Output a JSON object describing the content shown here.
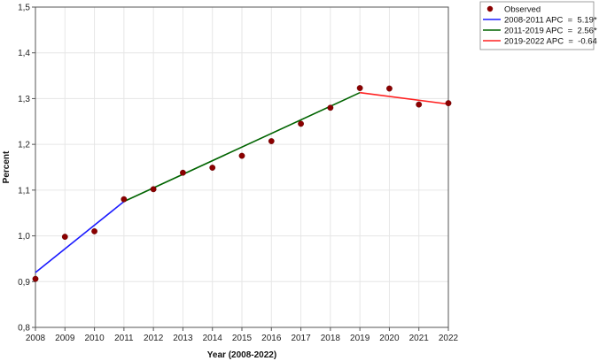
{
  "chart_data": {
    "type": "line",
    "xlabel": "Year (2008-2022)",
    "ylabel": "Percent",
    "xlim": [
      2008,
      2022
    ],
    "ylim": [
      0.8,
      1.5
    ],
    "x_ticks": [
      "2008",
      "2009",
      "2010",
      "2011",
      "2012",
      "2013",
      "2014",
      "2015",
      "2016",
      "2017",
      "2018",
      "2019",
      "2020",
      "2021",
      "2022"
    ],
    "y_ticks": [
      "0,8",
      "0,9",
      "1,0",
      "1,1",
      "1,2",
      "1,3",
      "1,4",
      "1,5"
    ],
    "grid": true,
    "legend_position": "top-right, outside plot",
    "observed": {
      "name": "Observed",
      "color": "#8b0000",
      "x": [
        2008,
        2009,
        2010,
        2011,
        2012,
        2013,
        2014,
        2015,
        2016,
        2017,
        2018,
        2019,
        2020,
        2021,
        2022
      ],
      "y": [
        0.906,
        0.998,
        1.01,
        1.08,
        1.102,
        1.138,
        1.149,
        1.175,
        1.207,
        1.245,
        1.28,
        1.323,
        1.322,
        1.287,
        1.29
      ]
    },
    "segments": [
      {
        "name": "2008-2011 APC  =  5.19*",
        "color": "#1a1aff",
        "x": [
          2008,
          2011
        ],
        "y": [
          0.92,
          1.075
        ]
      },
      {
        "name": "2011-2019 APC  =  2.56*",
        "color": "#006400",
        "x": [
          2011,
          2019
        ],
        "y": [
          1.075,
          1.313
        ]
      },
      {
        "name": "2019-2022 APC  =  -0.64",
        "color": "#ff2020",
        "x": [
          2019,
          2022
        ],
        "y": [
          1.313,
          1.288
        ]
      }
    ]
  }
}
